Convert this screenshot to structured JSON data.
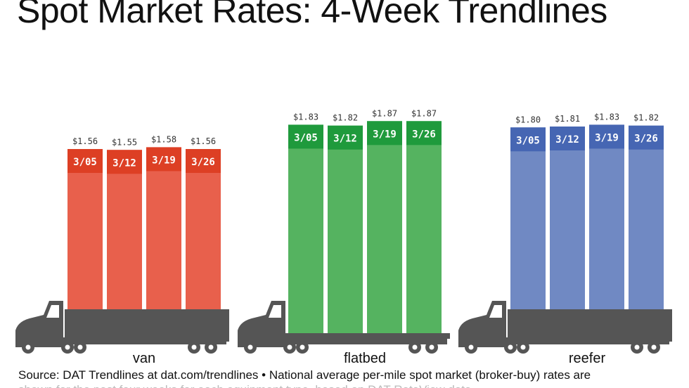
{
  "chart_data": [
    {
      "type": "bar",
      "group": "van",
      "categories": [
        "3/05",
        "3/12",
        "3/19",
        "3/26"
      ],
      "values": [
        1.56,
        1.55,
        1.58,
        1.56
      ],
      "value_labels": [
        "$1.56",
        "$1.55",
        "$1.58",
        "$1.56"
      ],
      "color": "#e8604c",
      "cap_color": "#dd3f24"
    },
    {
      "type": "bar",
      "group": "flatbed",
      "categories": [
        "3/05",
        "3/12",
        "3/19",
        "3/26"
      ],
      "values": [
        1.83,
        1.82,
        1.87,
        1.87
      ],
      "value_labels": [
        "$1.83",
        "$1.82",
        "$1.87",
        "$1.87"
      ],
      "color": "#55b360",
      "cap_color": "#1f9a3c"
    },
    {
      "type": "bar",
      "group": "reefer",
      "categories": [
        "3/05",
        "3/12",
        "3/19",
        "3/26"
      ],
      "values": [
        1.8,
        1.81,
        1.83,
        1.82
      ],
      "value_labels": [
        "$1.80",
        "$1.81",
        "$1.83",
        "$1.82"
      ],
      "color": "#7089c3",
      "cap_color": "#4666b3"
    }
  ],
  "title": "Spot Market Rates: 4-Week Trendlines",
  "source": "Source: DAT Trendlines at dat.com/trendlines • National average per-mile spot market (broker-buy) rates are",
  "source_continued": "shown for the past four weeks for each equipment type, based on DAT RateView data",
  "truck_color": "#555555",
  "grid": false,
  "legend": "none"
}
